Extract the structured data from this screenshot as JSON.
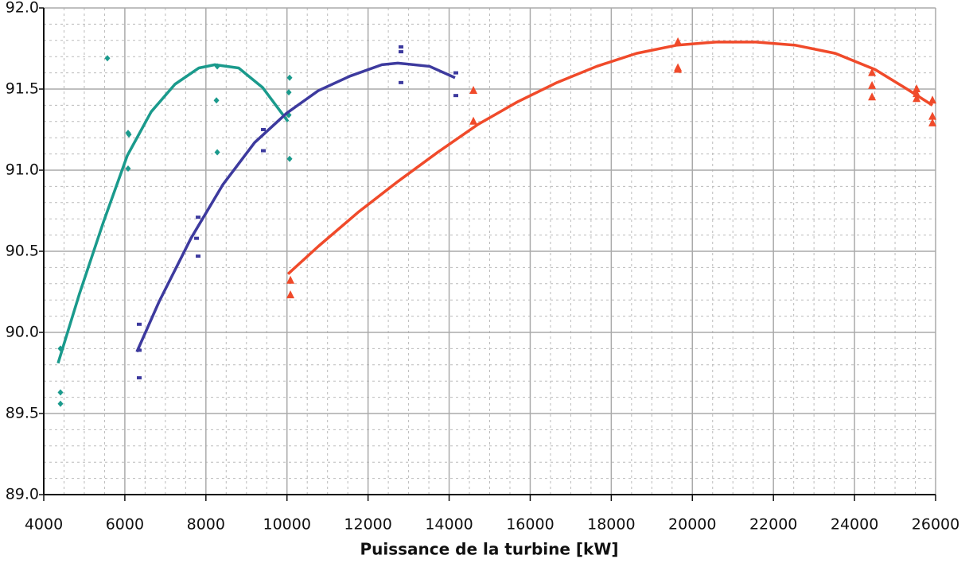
{
  "chart_data": {
    "type": "scatter",
    "x_label": "Puissance de la turbine [kW]",
    "xlim": [
      4000,
      26000
    ],
    "xticks": [
      4000,
      6000,
      8000,
      10000,
      12000,
      14000,
      16000,
      18000,
      20000,
      22000,
      24000,
      26000
    ],
    "x_minor_ticks": [
      4500,
      5000,
      5500,
      6500,
      7000,
      7500,
      8500,
      9000,
      9500,
      10500,
      11000,
      11500,
      12500,
      13000,
      13500,
      14500,
      15000,
      15500,
      16500,
      17000,
      17500,
      18500,
      19000,
      19500,
      20500,
      21000,
      21500,
      22500,
      23000,
      23500,
      24500,
      25000,
      25500
    ],
    "ylim": [
      89.0,
      92.0
    ],
    "yticks": [
      {
        "value": 89.0,
        "label": "89.0"
      },
      {
        "value": 89.5,
        "label": "89.5"
      },
      {
        "value": 90.0,
        "label": "90.0"
      },
      {
        "value": 90.5,
        "label": "90.5"
      },
      {
        "value": 91.0,
        "label": "91.0"
      },
      {
        "value": 91.5,
        "label": "91.5"
      },
      {
        "value": 92.0,
        "label": "92.0"
      }
    ],
    "y_minor_ticks": [
      89.1,
      89.2,
      89.3,
      89.4,
      89.6,
      89.7,
      89.8,
      89.9,
      90.1,
      90.2,
      90.3,
      90.4,
      90.6,
      90.7,
      90.8,
      90.9,
      91.1,
      91.2,
      91.3,
      91.4,
      91.6,
      91.7,
      91.8,
      91.9
    ],
    "grid": true,
    "series": [
      {
        "color": "#1a9a8c",
        "marker": "diamond",
        "x": [
          4412,
          4412,
          4412,
          5570,
          6080,
          6100,
          6080,
          8280,
          8260,
          8280,
          10065,
          10045,
          10045,
          10065
        ],
        "values": [
          89.9,
          89.63,
          89.56,
          91.69,
          91.23,
          91.22,
          91.01,
          91.64,
          91.43,
          91.11,
          91.57,
          91.48,
          91.34,
          91.07
        ],
        "fit_x": [
          4353,
          4883,
          5472,
          6061,
          6650,
          7238,
          7827,
          8220,
          8808,
          9397,
          10025
        ],
        "fit_values": [
          89.81,
          90.24,
          90.68,
          91.09,
          91.36,
          91.53,
          91.63,
          91.65,
          91.63,
          91.51,
          91.3
        ]
      },
      {
        "color": "#3d3a9e",
        "marker": "square",
        "x": [
          6355,
          6355,
          6355,
          7808,
          7808,
          7769,
          9417,
          9417,
          12812,
          12812,
          12812,
          14166,
          14166
        ],
        "values": [
          90.05,
          89.72,
          89.89,
          90.71,
          90.47,
          90.58,
          91.25,
          91.12,
          91.76,
          91.73,
          91.54,
          91.6,
          91.46
        ],
        "fit_x": [
          6296,
          6846,
          7631,
          8416,
          9201,
          9986,
          10771,
          11556,
          12341,
          12733,
          13518,
          14146
        ],
        "fit_values": [
          89.88,
          90.19,
          90.58,
          90.91,
          91.17,
          91.35,
          91.49,
          91.58,
          91.65,
          91.66,
          91.64,
          91.57
        ]
      },
      {
        "color": "#f04a2a",
        "marker": "triangle",
        "x": [
          10085,
          10085,
          14599,
          14599,
          19643,
          19643,
          19643,
          24432,
          24432,
          24432,
          25531,
          25531,
          25531,
          25923,
          25923,
          25923
        ],
        "values": [
          90.32,
          90.23,
          91.49,
          91.3,
          91.79,
          91.63,
          91.62,
          91.6,
          91.52,
          91.45,
          91.5,
          91.44,
          91.47,
          91.43,
          91.33,
          91.29
        ],
        "fit_x": [
          10025,
          10771,
          11753,
          12734,
          13716,
          14697,
          15678,
          16659,
          17641,
          18622,
          19603,
          20584,
          21566,
          22547,
          23528,
          24510,
          25295,
          25923
        ],
        "fit_values": [
          90.36,
          90.53,
          90.74,
          90.93,
          91.11,
          91.28,
          91.42,
          91.54,
          91.64,
          91.72,
          91.77,
          91.79,
          91.79,
          91.77,
          91.72,
          91.62,
          91.5,
          91.4
        ]
      }
    ]
  }
}
